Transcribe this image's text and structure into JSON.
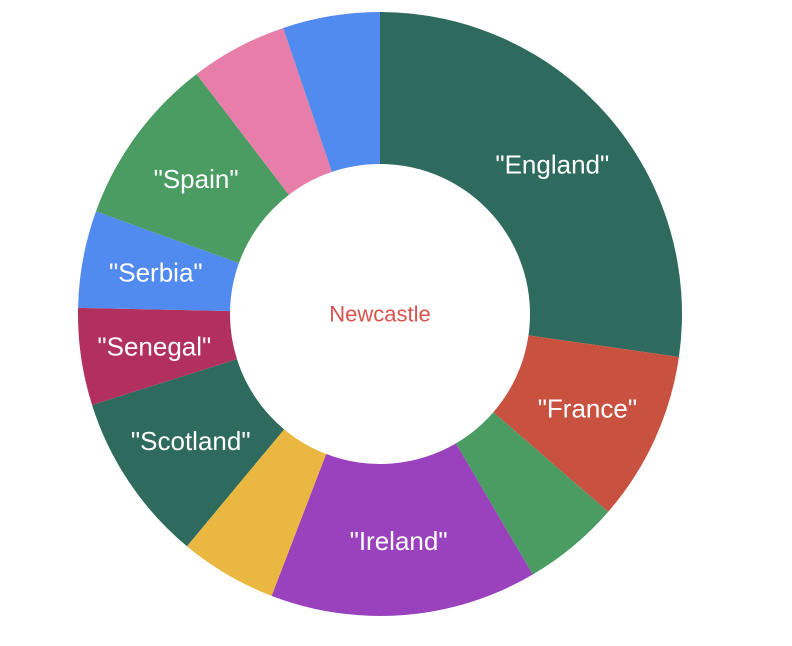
{
  "chart_data": {
    "type": "pie",
    "center_label": "Newcastle",
    "center_label_color": "#d9534f",
    "slices": [
      {
        "label": "\"England\"",
        "value": 21,
        "color": "#2e6b5e"
      },
      {
        "label": "\"France\"",
        "value": 7,
        "color": "#c95140"
      },
      {
        "label": "",
        "value": 4,
        "color": "#4a9c62"
      },
      {
        "label": "\"Ireland\"",
        "value": 11,
        "color": "#9a42bd"
      },
      {
        "label": "",
        "value": 4,
        "color": "#eab741"
      },
      {
        "label": "\"Scotland\"",
        "value": 7,
        "color": "#2e6b5e"
      },
      {
        "label": "\"Senegal\"",
        "value": 4,
        "color": "#b2305e"
      },
      {
        "label": "\"Serbia\"",
        "value": 4,
        "color": "#528bef"
      },
      {
        "label": "\"Spain\"",
        "value": 7,
        "color": "#4a9c62"
      },
      {
        "label": "",
        "value": 4,
        "color": "#e67ea9"
      },
      {
        "label": "",
        "value": 4,
        "color": "#528bef"
      }
    ]
  }
}
